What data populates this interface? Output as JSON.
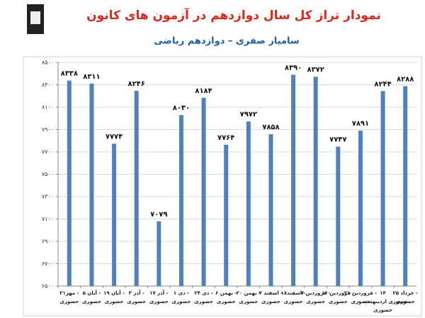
{
  "chart_data": {
    "type": "bar",
    "title": "نمودار تراز کل سال دوازدهم در آزمون های کانون",
    "subtitle": "سامیار صفری – دوازدهم ریاضی",
    "categories": [
      [
        "۲۱مهر -",
        "حضوری"
      ],
      [
        "۵ آبان -",
        "حضوری"
      ],
      [
        "۱۹ آبان -",
        "حضوری"
      ],
      [
        "۳ آذر -",
        "حضوری"
      ],
      [
        "۱۷ آذر -",
        "حضوری"
      ],
      [
        "۱ دی -",
        "حضوری"
      ],
      [
        "۲۴ دی -",
        "حضوری"
      ],
      [
        "۶ بهمن -",
        "حضوری"
      ],
      [
        "۲۰ بهمن -",
        "حضوری"
      ],
      [
        "۴ اسفند -",
        "حضوری"
      ],
      [
        "۱۸اسفند -",
        "حضوری"
      ],
      [
        "۷ فروردین -",
        "حضوری"
      ],
      [
        "۱۶ فروردین -",
        "حضوری"
      ],
      [
        "۲۱ فروردین -",
        "حضوری"
      ],
      [
        "۱۴",
        "- حضوری اردیبهشت",
        "حضوری"
      ],
      [
        "۲۵ خرداد -",
        "حضوری"
      ]
    ],
    "values": [
      8338,
      8311,
      7774,
      8246,
      7079,
      8030,
      8184,
      7764,
      7972,
      7858,
      8390,
      8372,
      7747,
      7891,
      8244,
      8288
    ],
    "value_labels": [
      "۸۳۳۸",
      "۸۳۱۱",
      "۷۷۷۴",
      "۸۲۴۶",
      "۷۰۷۹",
      "۸۰۳۰",
      "۸۱۸۴",
      "۷۷۶۴",
      "۷۹۷۲",
      "۷۸۵۸",
      "۸۳۹۰",
      "۸۳۷۲",
      "۷۷۴۷",
      "۷۸۹۱",
      "۸۲۴۴",
      "۸۲۸۸"
    ],
    "color": "#4f81bd",
    "ylim": [
      6500,
      8500
    ],
    "yticks": [
      {
        "value": 6500,
        "label": "۶۵۰۰"
      },
      {
        "value": 6700,
        "label": "۶۷۰۰"
      },
      {
        "value": 6900,
        "label": "۶۹۰۰"
      },
      {
        "value": 7100,
        "label": "۷۱۰۰"
      },
      {
        "value": 7300,
        "label": "۷۳۰۰"
      },
      {
        "value": 7500,
        "label": "۷۵۰۰"
      },
      {
        "value": 7700,
        "label": "۷۷۰۰"
      },
      {
        "value": 7900,
        "label": "۷۹۰۰"
      },
      {
        "value": 8100,
        "label": "۸۱۰۰"
      },
      {
        "value": 8300,
        "label": "۸۳۰۰"
      },
      {
        "value": 8500,
        "label": "۸۵۰۰"
      }
    ],
    "grid": true
  }
}
